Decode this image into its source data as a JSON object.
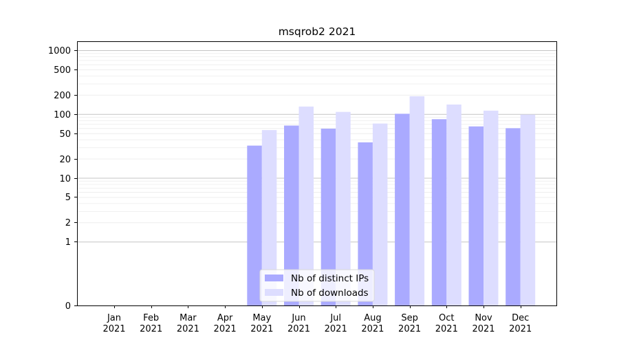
{
  "chart_data": {
    "type": "bar",
    "title": "msqrob2 2021",
    "xlabel": "",
    "ylabel": "",
    "yscale": "symlog",
    "ylim": [
      0,
      1000
    ],
    "yticks": [
      0,
      1,
      2,
      5,
      10,
      20,
      50,
      100,
      200,
      500,
      1000
    ],
    "ytick_labels": [
      "0",
      "1",
      "2",
      "5",
      "10",
      "20",
      "50",
      "100",
      "200",
      "500",
      "1000"
    ],
    "grid": "horizontal",
    "legend_position": "bottom-center",
    "categories": [
      {
        "month": "Jan",
        "year": "2021"
      },
      {
        "month": "Feb",
        "year": "2021"
      },
      {
        "month": "Mar",
        "year": "2021"
      },
      {
        "month": "Apr",
        "year": "2021"
      },
      {
        "month": "May",
        "year": "2021"
      },
      {
        "month": "Jun",
        "year": "2021"
      },
      {
        "month": "Jul",
        "year": "2021"
      },
      {
        "month": "Aug",
        "year": "2021"
      },
      {
        "month": "Sep",
        "year": "2021"
      },
      {
        "month": "Oct",
        "year": "2021"
      },
      {
        "month": "Nov",
        "year": "2021"
      },
      {
        "month": "Dec",
        "year": "2021"
      }
    ],
    "series": [
      {
        "name": "Nb of distinct IPs",
        "color": "#aaaaff",
        "values": [
          0,
          0,
          0,
          0,
          32,
          66,
          59,
          36,
          101,
          83,
          64,
          60
        ]
      },
      {
        "name": "Nb of downloads",
        "color": "#ddddff",
        "values": [
          0,
          0,
          0,
          0,
          56,
          131,
          108,
          71,
          190,
          141,
          113,
          98
        ]
      }
    ]
  }
}
